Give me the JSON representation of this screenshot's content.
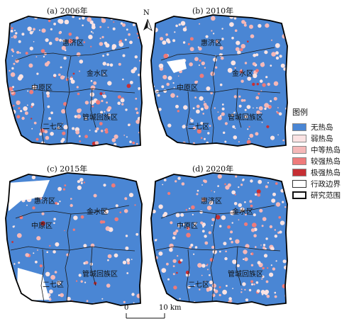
{
  "panels": [
    {
      "title": "(a) 2006年",
      "labels": {
        "huiji": "惠济区",
        "jinshui": "金水区",
        "zhongyuan": "中原区",
        "guancheng": "管城回族区",
        "erqi": "二七区"
      }
    },
    {
      "title": "(b) 2010年",
      "labels": {
        "huiji": "惠济区",
        "jinshui": "金水区",
        "zhongyuan": "中原区",
        "guancheng": "管城回族区",
        "erqi": "二七区"
      }
    },
    {
      "title": "(c) 2015年",
      "labels": {
        "huiji": "惠济区",
        "jinshui": "金水区",
        "zhongyuan": "中原区",
        "guancheng": "管城回族区",
        "erqi": "二七区"
      }
    },
    {
      "title": "(d) 2020年",
      "labels": {
        "huiji": "惠济区",
        "jinshui": "金水区",
        "zhongyuan": "中原区",
        "guancheng": "管城回族区",
        "erqi": "二七区"
      }
    }
  ],
  "legend": {
    "title": "图例",
    "items": [
      {
        "label": "无热岛",
        "color": "#4a86d4"
      },
      {
        "label": "弱热岛",
        "color": "#fbe3e3"
      },
      {
        "label": "中等热岛",
        "color": "#f5b8b8"
      },
      {
        "label": "较强热岛",
        "color": "#ee7b7b"
      },
      {
        "label": "极强热岛",
        "color": "#c62f34"
      },
      {
        "label": "行政边界",
        "color": "#ffffff"
      },
      {
        "label": "研究范围",
        "color": "#ffffff"
      }
    ]
  },
  "north": {
    "label": "N"
  },
  "scale": {
    "zero": "0",
    "end": "10 km"
  },
  "map_colors": {
    "base": "#4a86d4",
    "weak": "#fbe3e3",
    "medium": "#f5b8b8",
    "strong": "#ee7b7b",
    "extreme": "#c62f34"
  }
}
